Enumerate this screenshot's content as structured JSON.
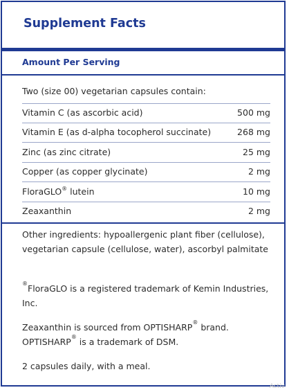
{
  "title": "Supplement Facts",
  "amount_per_serving": "Amount Per Serving",
  "intro": "Two (size 00) vegetarian capsules contain:",
  "nutrients": [
    {
      "name": "Vitamin C (as ascorbic acid)",
      "amount": "500 mg"
    },
    {
      "name": "Vitamin E (as d-alpha tocopherol succinate)",
      "amount": "268 mg"
    },
    {
      "name": "Zinc (as zinc citrate)",
      "amount": "25 mg"
    },
    {
      "name": "Copper (as copper glycinate)",
      "amount": "2 mg"
    },
    {
      "name": "FloraGLO",
      "name_sup": "®",
      "name_suffix": " lutein",
      "amount": "10 mg"
    },
    {
      "name": "Zeaxanthin",
      "amount": "2 mg"
    }
  ],
  "other_ingredients": "Other ingredients: hypoallergenic plant fiber (cellulose), vegetarian capsule (cellulose, water), ascorbyl palmitate",
  "floraglo_note": {
    "sup": "®",
    "text": "FloraGLO is a registered trademark of Kemin Industries, Inc."
  },
  "zeaxanthin_note": {
    "part1": "Zeaxanthin is sourced from OPTISHARP",
    "sup1": "®",
    "part2": " brand.",
    "part3": "OPTISHARP",
    "sup2": "®",
    "part4": " is a trademark of DSM."
  },
  "directions": "2 capsules daily, with a meal.",
  "watermark": "Activ",
  "colors": {
    "accent": "#1f3a93",
    "text": "#2b2b2b"
  }
}
